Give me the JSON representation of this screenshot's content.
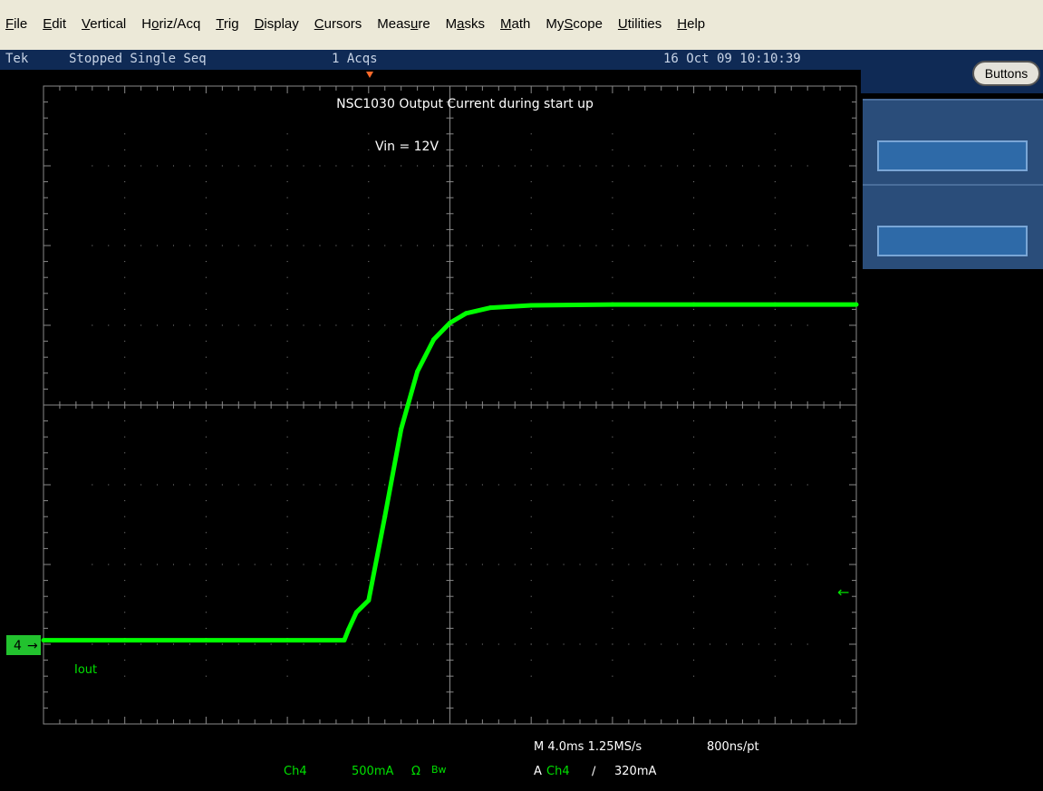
{
  "menu": {
    "items": [
      {
        "label": "File",
        "underline_index": 0
      },
      {
        "label": "Edit",
        "underline_index": 0
      },
      {
        "label": "Vertical",
        "underline_index": 0
      },
      {
        "label": "Horiz/Acq",
        "underline_index": 1
      },
      {
        "label": "Trig",
        "underline_index": 0
      },
      {
        "label": "Display",
        "underline_index": 0
      },
      {
        "label": "Cursors",
        "underline_index": 0
      },
      {
        "label": "Measure",
        "underline_index": 4
      },
      {
        "label": "Masks",
        "underline_index": 1
      },
      {
        "label": "Math",
        "underline_index": 0
      },
      {
        "label": "MyScope",
        "underline_index": 2
      },
      {
        "label": "Utilities",
        "underline_index": 0
      },
      {
        "label": "Help",
        "underline_index": 0
      }
    ]
  },
  "status": {
    "brand": "Tek",
    "state": "Stopped  Single Seq",
    "acqs": "1 Acqs",
    "datetime": "16 Oct 09 10:10:39"
  },
  "side": {
    "buttons_label": "Buttons"
  },
  "screen": {
    "annotation_title": "NSC1030 Output Current during start up",
    "annotation_vin": "Vin = 12V",
    "channel_marker": "4",
    "trace_label": "Iout",
    "readout_channel": "Ch4",
    "readout_scale": "500mA",
    "readout_coupling": "Ω",
    "readout_bw": "Bw",
    "readout_timebase": "M 4.0ms 1.25MS/s",
    "readout_record": "800ns/pt",
    "readout_trigger_prefix": "A",
    "readout_trigger_channel": "Ch4",
    "readout_trigger_slope": "∕",
    "readout_trigger_level": "320mA"
  },
  "colors": {
    "trace": "#00ff00",
    "grid": "#8a8a8a",
    "trigger_marker": "#ff6a2a",
    "status_bg": "#0f2a55"
  },
  "chart_data": {
    "type": "line",
    "title": "NSC1030 Output Current during start up",
    "subtitle": "Vin = 12V",
    "xlabel": "",
    "ylabel": "",
    "x_divisions": 10,
    "y_divisions": 8,
    "time_per_div": "4.0ms",
    "volts_per_div": "500mA",
    "series": [
      {
        "name": "Iout",
        "x_div": [
          0,
          1,
          2,
          3,
          3.7,
          3.75,
          3.85,
          4.0,
          4.2,
          4.4,
          4.6,
          4.8,
          5.0,
          5.2,
          5.5,
          6.0,
          7.0,
          8.0,
          9.0,
          10.0
        ],
        "y_div": [
          -2.95,
          -2.95,
          -2.95,
          -2.95,
          -2.95,
          -2.82,
          -2.6,
          -2.45,
          -1.4,
          -0.3,
          0.42,
          0.82,
          1.03,
          1.15,
          1.22,
          1.25,
          1.26,
          1.26,
          1.26,
          1.26
        ]
      }
    ]
  }
}
